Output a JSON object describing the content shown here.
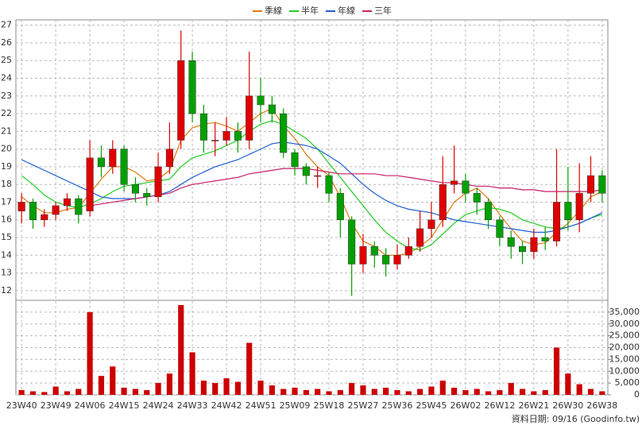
{
  "chart_data": [
    {
      "type": "candlestick",
      "categories": [
        "23W40",
        null,
        null,
        "23W49",
        null,
        null,
        "24W06",
        null,
        null,
        "24W15",
        null,
        null,
        "24W24",
        null,
        null,
        "24W33",
        null,
        null,
        "24W42",
        null,
        null,
        "24W51",
        null,
        null,
        "25W09",
        null,
        null,
        "25W18",
        null,
        null,
        "25W27",
        null,
        null,
        "25W36",
        null,
        null,
        "25W45",
        null,
        null,
        "26W02",
        null,
        null,
        "26W12",
        null,
        null,
        "26W21",
        null,
        null,
        "26W30",
        null,
        null,
        "26W38"
      ],
      "open": [
        16.5,
        17,
        16,
        16.3,
        16.8,
        17.2,
        16.5,
        19.5,
        19,
        20,
        18,
        17.5,
        17.3,
        19,
        20.5,
        25,
        22,
        20.5,
        20.5,
        21,
        20.5,
        23,
        22.5,
        22,
        19.8,
        19,
        18.5,
        18.5,
        17.5,
        16,
        13.5,
        14.5,
        14,
        13.5,
        14,
        14.5,
        15.5,
        16,
        18,
        18.2,
        17.5,
        17,
        16,
        15,
        14.5,
        14.2,
        15,
        14.8,
        17,
        16,
        17.5,
        18.5
      ],
      "high": [
        17.5,
        17.2,
        16.6,
        17,
        17.5,
        17.4,
        20.5,
        20.2,
        20.5,
        20.2,
        18.4,
        17.8,
        19.8,
        21.5,
        26.7,
        25.5,
        22.5,
        21.5,
        21.8,
        21.5,
        25.5,
        24,
        23,
        22.3,
        20,
        19.2,
        19,
        18.7,
        17.8,
        16.2,
        15.2,
        14.8,
        14.4,
        14.6,
        15,
        16.5,
        17,
        19.6,
        20.2,
        18.6,
        17.8,
        17.2,
        16.2,
        15.4,
        14.8,
        15.5,
        15.6,
        20,
        19,
        19.2,
        19.6,
        18.8
      ],
      "low": [
        15.8,
        15.5,
        15.6,
        16,
        16.5,
        15.8,
        16.2,
        18.4,
        18.6,
        17.6,
        17,
        16.8,
        17,
        18.6,
        20,
        21.5,
        19.8,
        19.6,
        20.2,
        19.8,
        20,
        21.5,
        21.5,
        19.5,
        18.5,
        18,
        17.8,
        17,
        15,
        11.7,
        13,
        13.3,
        12.8,
        13.2,
        13.8,
        14.2,
        15,
        15.6,
        17.5,
        17,
        16.3,
        15.5,
        14.5,
        13.8,
        13.5,
        13.8,
        14.3,
        14.5,
        15.4,
        15.3,
        17,
        17
      ],
      "close": [
        17,
        16,
        16.3,
        16.8,
        17.2,
        16.3,
        19.5,
        19,
        20,
        18,
        17.5,
        17.3,
        19,
        20,
        25,
        22,
        20.5,
        20.5,
        21,
        20.5,
        23,
        22.5,
        22,
        19.8,
        19,
        18.5,
        18.5,
        17.5,
        16,
        13.5,
        14.5,
        14,
        13.5,
        14,
        14.5,
        15.5,
        16,
        18,
        18.2,
        17.5,
        17,
        16,
        15,
        14.5,
        14.2,
        15,
        14.8,
        17,
        16,
        17.5,
        18.5,
        17.5
      ],
      "up_color": "#e00000",
      "down_color": "#00a000",
      "series": [
        {
          "name": "季線",
          "color": "#e07a10",
          "values": [
            17.3,
            16.8,
            16.4,
            16.4,
            16.6,
            16.7,
            17.5,
            18.3,
            19,
            19,
            18.7,
            18.2,
            18.3,
            18.8,
            20.5,
            21.2,
            21.4,
            21.5,
            21.3,
            21,
            21.5,
            22,
            22.3,
            21.3,
            20.6,
            19.7,
            19,
            18.5,
            17.3,
            15.8,
            14.8,
            14.5,
            14,
            14,
            14.1,
            14.5,
            15,
            16,
            17,
            17.5,
            17.8,
            17.2,
            16.3,
            15.5,
            14.8,
            14.6,
            14.7,
            15.3,
            15.8,
            16.5,
            17.3,
            17.6
          ]
        },
        {
          "name": "半年",
          "color": "#22cc22",
          "values": [
            18.5,
            18,
            17.4,
            17,
            16.8,
            16.7,
            16.9,
            17.2,
            17.6,
            17.9,
            18,
            18.1,
            18.2,
            18.3,
            19,
            19.5,
            19.7,
            19.9,
            20.2,
            20.5,
            21,
            21.4,
            21.6,
            21.4,
            21,
            20.6,
            20,
            19.2,
            18.4,
            17.6,
            16.8,
            16,
            15.3,
            14.8,
            14.4,
            14.3,
            14.6,
            15.2,
            15.8,
            16.3,
            16.5,
            16.7,
            16.6,
            16.4,
            16,
            15.8,
            15.6,
            15.5,
            15.6,
            15.8,
            16.1,
            16.3
          ]
        },
        {
          "name": "年線",
          "color": "#1f5fd0",
          "values": [
            19.4,
            19.1,
            18.8,
            18.5,
            18.2,
            17.9,
            17.6,
            17.3,
            17.2,
            17.2,
            17.2,
            17.3,
            17.4,
            17.6,
            18,
            18.4,
            18.7,
            19,
            19.2,
            19.4,
            19.7,
            20,
            20.3,
            20.4,
            20.3,
            20.2,
            20,
            19.6,
            19.2,
            18.6,
            18,
            17.5,
            17.1,
            16.8,
            16.6,
            16.5,
            16.4,
            16.2,
            16,
            15.9,
            15.8,
            15.7,
            15.6,
            15.5,
            15.4,
            15.3,
            15.3,
            15.4,
            15.6,
            15.8,
            16.1,
            16.4
          ]
        },
        {
          "name": "三年",
          "color": "#c8206a",
          "values": [
            null,
            null,
            null,
            null,
            null,
            null,
            16.8,
            16.9,
            17,
            17.1,
            17.2,
            17.3,
            17.4,
            17.5,
            17.8,
            18,
            18.1,
            18.2,
            18.3,
            18.4,
            18.6,
            18.7,
            18.8,
            18.9,
            18.9,
            18.9,
            18.8,
            18.7,
            18.6,
            18.6,
            18.6,
            18.6,
            18.5,
            18.5,
            18.4,
            18.3,
            18.2,
            18.1,
            18.1,
            18,
            17.9,
            17.9,
            17.8,
            17.8,
            17.7,
            17.7,
            17.6,
            17.6,
            17.6,
            17.6,
            17.6,
            17.7
          ]
        }
      ],
      "ylim": [
        11.5,
        27.3
      ],
      "yticks": [
        12,
        13,
        14,
        15,
        16,
        17,
        18,
        19,
        20,
        21,
        22,
        23,
        24,
        25,
        26,
        27
      ],
      "grid": true,
      "legend": "top"
    },
    {
      "type": "bar",
      "values": [
        2000,
        1500,
        1200,
        3500,
        1500,
        2500,
        35000,
        8000,
        12000,
        3000,
        2500,
        2000,
        5000,
        9000,
        38000,
        18000,
        6000,
        5000,
        7000,
        5500,
        22000,
        6000,
        4000,
        2500,
        3000,
        2000,
        2500,
        1500,
        2000,
        5000,
        4000,
        2500,
        3000,
        2000,
        1500,
        2500,
        3500,
        6000,
        3000,
        2000,
        2500,
        1500,
        2000,
        5000,
        2500,
        1500,
        2000,
        20000,
        9000,
        4500,
        2500,
        1500
      ],
      "color": "#cc0000",
      "ylim": [
        0,
        40000
      ],
      "yticks": [
        0,
        {
          "value": 5000,
          "label": "5,000"
        },
        {
          "value": 10000,
          "label": "10,000"
        },
        {
          "value": 15000,
          "label": "15,000"
        },
        {
          "value": 20000,
          "label": "20,000"
        },
        {
          "value": 25000,
          "label": "25,000"
        },
        {
          "value": 30000,
          "label": "30,000"
        },
        {
          "value": 35000,
          "label": "35,000"
        }
      ],
      "grid": true,
      "annotation": "資料日期: 09/16 (Goodinfo.tw)"
    }
  ]
}
